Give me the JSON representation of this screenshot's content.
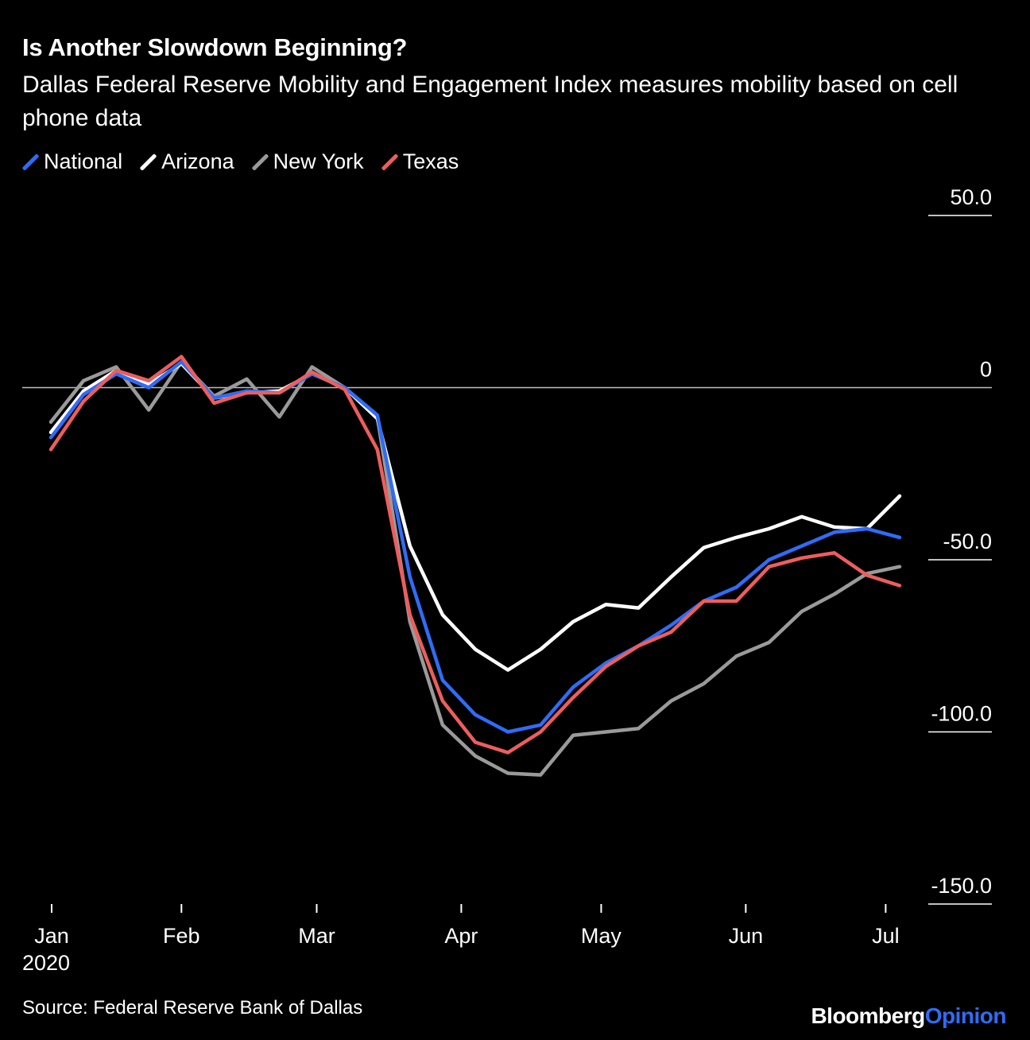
{
  "header": {
    "title": "Is Another Slowdown Beginning?",
    "subtitle": "Dallas Federal Reserve Mobility and Engagement Index measures mobility based on cell phone data"
  },
  "footer": {
    "year": "2020",
    "source": "Source: Federal Reserve Bank of Dallas",
    "brand_part1": "Bloomberg",
    "brand_part2": "Opinion"
  },
  "colors": {
    "background": "#000000",
    "national": "#2f6cf6",
    "arizona": "#ffffff",
    "new_york": "#9a9a9a",
    "texas": "#ee5d5d",
    "zero_line": "#bdbdbd",
    "brand_accent": "#2f6cf6"
  },
  "chart_data": {
    "type": "line",
    "title": "Is Another Slowdown Beginning?",
    "subtitle": "Dallas Federal Reserve Mobility and Engagement Index measures mobility based on cell phone data",
    "xlabel": "",
    "ylabel": "",
    "ylim": [
      -150,
      50
    ],
    "y_ticks": [
      50,
      0,
      -50,
      -100,
      -150
    ],
    "y_tick_labels": [
      "50.0",
      "0",
      "-50.0",
      "-100.0",
      "-150.0"
    ],
    "x_ticks": [
      "2020-01-04",
      "2020-02-01",
      "2020-03-01",
      "2020-04-01",
      "2020-05-01",
      "2020-06-01",
      "2020-07-01"
    ],
    "x_tick_labels": [
      "Jan",
      "Feb",
      "Mar",
      "Apr",
      "May",
      "Jun",
      "Jul"
    ],
    "x_range": [
      "2020-01-01",
      "2020-07-09"
    ],
    "legend_position": "top-left",
    "grid": false,
    "x": [
      "2020-01-04",
      "2020-01-11",
      "2020-01-18",
      "2020-01-25",
      "2020-02-01",
      "2020-02-08",
      "2020-02-15",
      "2020-02-22",
      "2020-02-29",
      "2020-03-07",
      "2020-03-14",
      "2020-03-21",
      "2020-03-28",
      "2020-04-04",
      "2020-04-11",
      "2020-04-18",
      "2020-04-25",
      "2020-05-02",
      "2020-05-09",
      "2020-05-16",
      "2020-05-23",
      "2020-05-30",
      "2020-06-06",
      "2020-06-13",
      "2020-06-20",
      "2020-06-27",
      "2020-07-04"
    ],
    "series": [
      {
        "name": "National",
        "color": "#2f6cf6",
        "values": [
          -14.5,
          -2,
          4,
          0,
          7.5,
          -3,
          -1,
          -1.5,
          4,
          0,
          -8,
          -55,
          -85,
          -95,
          -100,
          -98,
          -87,
          -80,
          -75,
          -69,
          -62,
          -58,
          -50,
          -46,
          -42,
          -41,
          -43.5
        ]
      },
      {
        "name": "Arizona",
        "color": "#ffffff",
        "values": [
          -13,
          -1,
          5,
          1,
          7,
          -3,
          -1.5,
          -1,
          4,
          0,
          -9,
          -46,
          -66,
          -76,
          -82,
          -76,
          -68,
          -63,
          -64,
          -55,
          -46.5,
          -43.5,
          -41,
          -37.5,
          -40.5,
          -41,
          -31.5
        ]
      },
      {
        "name": "New York",
        "color": "#9a9a9a",
        "values": [
          -10,
          2,
          6,
          -6.5,
          7.5,
          -2.5,
          2.5,
          -8.5,
          6,
          0,
          -8.5,
          -68,
          -98,
          -107,
          -112,
          -112.5,
          -101,
          -100,
          -99,
          -91,
          -86,
          -78,
          -74,
          -65,
          -60,
          -54,
          -52
        ]
      },
      {
        "name": "Texas",
        "color": "#ee5d5d",
        "values": [
          -18,
          -4,
          5,
          2,
          9,
          -4.5,
          -1.5,
          -1.5,
          4.5,
          -0.5,
          -18,
          -66,
          -91,
          -103,
          -106,
          -100,
          -90,
          -81,
          -75,
          -71,
          -62,
          -62,
          -52,
          -49.5,
          -48,
          -54.5,
          -57.5
        ]
      }
    ]
  }
}
